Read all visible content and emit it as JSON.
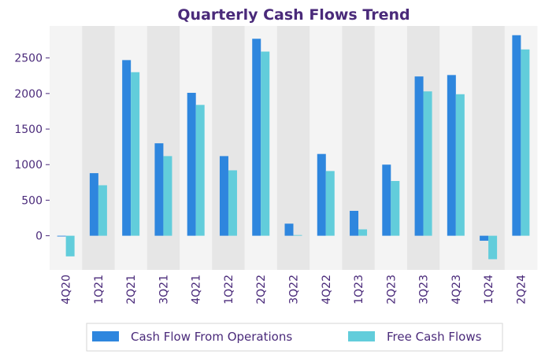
{
  "chart_data": {
    "type": "bar",
    "title": "Quarterly Cash Flows Trend",
    "xlabel": "",
    "ylabel": "",
    "categories": [
      "4Q20",
      "1Q21",
      "2Q21",
      "3Q21",
      "4Q21",
      "1Q22",
      "2Q22",
      "3Q22",
      "4Q22",
      "1Q23",
      "2Q23",
      "3Q23",
      "4Q23",
      "1Q24",
      "2Q24"
    ],
    "series": [
      {
        "name": "Cash Flow From Operations",
        "color": "#2e86de",
        "values": [
          -10,
          880,
          2470,
          1300,
          2010,
          1120,
          2770,
          170,
          1150,
          350,
          1000,
          2240,
          2260,
          -70,
          2820
        ]
      },
      {
        "name": "Free Cash Flows",
        "color": "#62cddb",
        "values": [
          -290,
          710,
          2300,
          1120,
          1840,
          920,
          2590,
          10,
          910,
          90,
          770,
          2030,
          1990,
          -330,
          2620
        ]
      }
    ],
    "yticks": [
      0,
      500,
      1000,
      1500,
      2000,
      2500
    ],
    "ylim": [
      -480,
      2950
    ],
    "grid": false,
    "legend_position": "bottom",
    "band_colors": [
      "#f4f4f4",
      "#e6e6e6"
    ]
  }
}
